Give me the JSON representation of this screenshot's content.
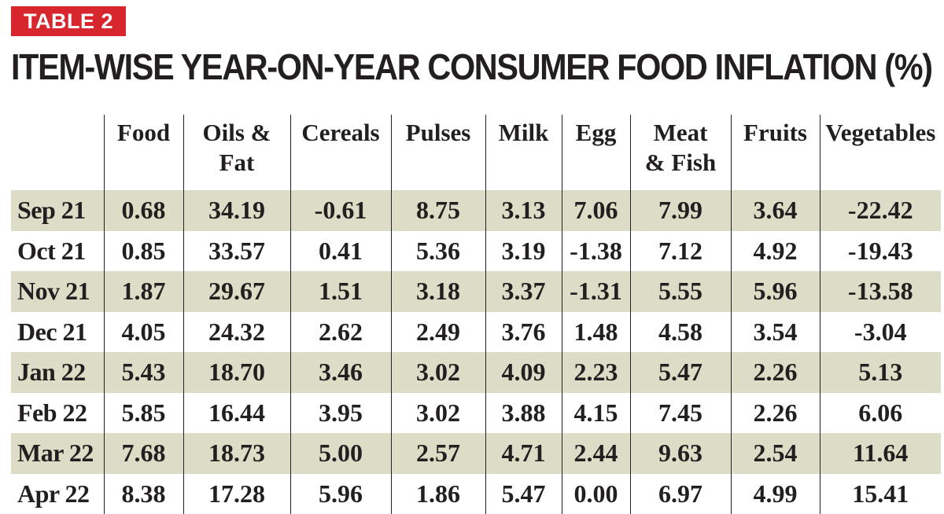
{
  "badge": "TABLE 2",
  "title": "ITEM-WISE YEAR-ON-YEAR CONSUMER FOOD INFLATION (%)",
  "columns": [
    "Food",
    "Oils &\nFat",
    "Cereals",
    "Pulses",
    "Milk",
    "Egg",
    "Meat\n& Fish",
    "Fruits",
    "Vegetables"
  ],
  "rows": [
    {
      "month": "Sep 21",
      "values": [
        "0.68",
        "34.19",
        "-0.61",
        "8.75",
        "3.13",
        "7.06",
        "7.99",
        "3.64",
        "-22.42"
      ]
    },
    {
      "month": "Oct 21",
      "values": [
        "0.85",
        "33.57",
        "0.41",
        "5.36",
        "3.19",
        "-1.38",
        "7.12",
        "4.92",
        "-19.43"
      ]
    },
    {
      "month": "Nov 21",
      "values": [
        "1.87",
        "29.67",
        "1.51",
        "3.18",
        "3.37",
        "-1.31",
        "5.55",
        "5.96",
        "-13.58"
      ]
    },
    {
      "month": "Dec 21",
      "values": [
        "4.05",
        "24.32",
        "2.62",
        "2.49",
        "3.76",
        "1.48",
        "4.58",
        "3.54",
        "-3.04"
      ]
    },
    {
      "month": "Jan 22",
      "values": [
        "5.43",
        "18.70",
        "3.46",
        "3.02",
        "4.09",
        "2.23",
        "5.47",
        "2.26",
        "5.13"
      ]
    },
    {
      "month": "Feb 22",
      "values": [
        "5.85",
        "16.44",
        "3.95",
        "3.02",
        "3.88",
        "4.15",
        "7.45",
        "2.26",
        "6.06"
      ]
    },
    {
      "month": "Mar 22",
      "values": [
        "7.68",
        "18.73",
        "5.00",
        "2.57",
        "4.71",
        "2.44",
        "9.63",
        "2.54",
        "11.64"
      ]
    },
    {
      "month": "Apr 22",
      "values": [
        "8.38",
        "17.28",
        "5.96",
        "1.86",
        "5.47",
        "0.00",
        "6.97",
        "4.99",
        "15.41"
      ]
    }
  ],
  "colors": {
    "badge_bg": "#d7262e",
    "stripe_bg": "#ddddc7",
    "text": "#231f20"
  }
}
